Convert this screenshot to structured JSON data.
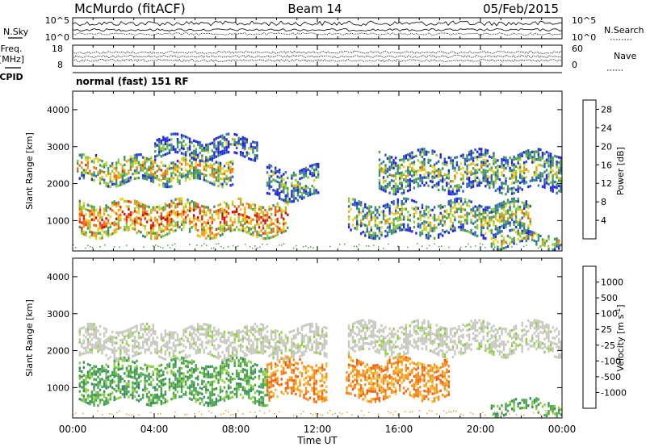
{
  "header": {
    "station": "McMurdo (fitACF)",
    "beam": "Beam 14",
    "date": "05/Feb/2015"
  },
  "left_labels": {
    "nsky": "N.Sky",
    "freq_line1": "Freq.",
    "freq_line2": "[MHz]",
    "cpid": "CPID"
  },
  "right_labels": {
    "nsearch": "N.Search",
    "nave": "Nave"
  },
  "mode_text": "normal (fast) 151 RF",
  "noise_panel": {
    "left_ticks": [
      "10^5",
      "10^0"
    ],
    "right_ticks": [
      "10^5",
      "10^0"
    ]
  },
  "freq_panel": {
    "left_ticks": [
      "18",
      "8"
    ],
    "right_ticks": [
      "60",
      "0"
    ]
  },
  "x_axis": {
    "label": "Time UT",
    "ticks": [
      "00:00",
      "04:00",
      "08:00",
      "12:00",
      "16:00",
      "20:00",
      "00:00"
    ]
  },
  "chart_data": [
    {
      "type": "heatmap",
      "ylabel": "Slant Range [km]",
      "ylim": [
        180,
        4500
      ],
      "y_ticks": [
        1000,
        2000,
        3000,
        4000
      ],
      "x_range_hours": [
        0,
        24
      ],
      "colorbar": {
        "label": "Power [dB]",
        "ticks": [
          "4",
          "8",
          "12",
          "16",
          "20",
          "24",
          "28"
        ],
        "range": [
          0,
          30
        ],
        "colors": [
          "#2424e6",
          "#2a5fc0",
          "#3a8a7a",
          "#4c9e4a",
          "#8ec63f",
          "#e8d21a",
          "#f5a21a",
          "#f06a12",
          "#e62c10",
          "#c41010"
        ]
      },
      "echo_regions": [
        {
          "t0": 0.2,
          "t1": 7.8,
          "r0": 2000,
          "r1": 2700,
          "level": 0.6
        },
        {
          "t0": 0.3,
          "t1": 10.5,
          "r0": 600,
          "r1": 1500,
          "level": 0.8
        },
        {
          "t0": 4.0,
          "t1": 9.0,
          "r0": 2700,
          "r1": 3200,
          "level": 0.35
        },
        {
          "t0": 9.5,
          "t1": 12.0,
          "r0": 1600,
          "r1": 2400,
          "level": 0.4
        },
        {
          "t0": 13.5,
          "t1": 22.5,
          "r0": 600,
          "r1": 1500,
          "level": 0.5
        },
        {
          "t0": 15.0,
          "t1": 24.0,
          "r0": 1800,
          "r1": 2800,
          "level": 0.45
        },
        {
          "t0": 20.5,
          "t1": 24.0,
          "r0": 300,
          "r1": 650,
          "level": 0.6
        }
      ]
    },
    {
      "type": "heatmap",
      "ylabel": "Slant Range [km]",
      "ylim": [
        180,
        4500
      ],
      "y_ticks": [
        1000,
        2000,
        3000,
        4000
      ],
      "x_range_hours": [
        0,
        24
      ],
      "colorbar": {
        "label": "Velocity [m s^-1]",
        "ticks": [
          "1000",
          "500",
          "100",
          "25",
          "-25",
          "-100",
          "-500",
          "-1000"
        ],
        "colors": [
          "#2440c8",
          "#2a5fb0",
          "#3a8a6a",
          "#4ca84a",
          "#8ed040",
          "#c8c8c0",
          "#f5c030",
          "#f59020",
          "#f06010",
          "#e02010"
        ]
      },
      "echo_regions": [
        {
          "t0": 0.3,
          "t1": 13.0,
          "r0": 1800,
          "r1": 2600,
          "class": "ground"
        },
        {
          "t0": 13.5,
          "t1": 24.0,
          "r0": 1900,
          "r1": 2700,
          "class": "ground"
        },
        {
          "t0": 0.3,
          "t1": 9.5,
          "r0": 600,
          "r1": 1700,
          "class": "positive"
        },
        {
          "t0": 9.5,
          "t1": 18.5,
          "r0": 700,
          "r1": 1700,
          "class": "negative"
        },
        {
          "t0": 20.5,
          "t1": 24.0,
          "r0": 300,
          "r1": 650,
          "class": "positive"
        }
      ]
    }
  ]
}
